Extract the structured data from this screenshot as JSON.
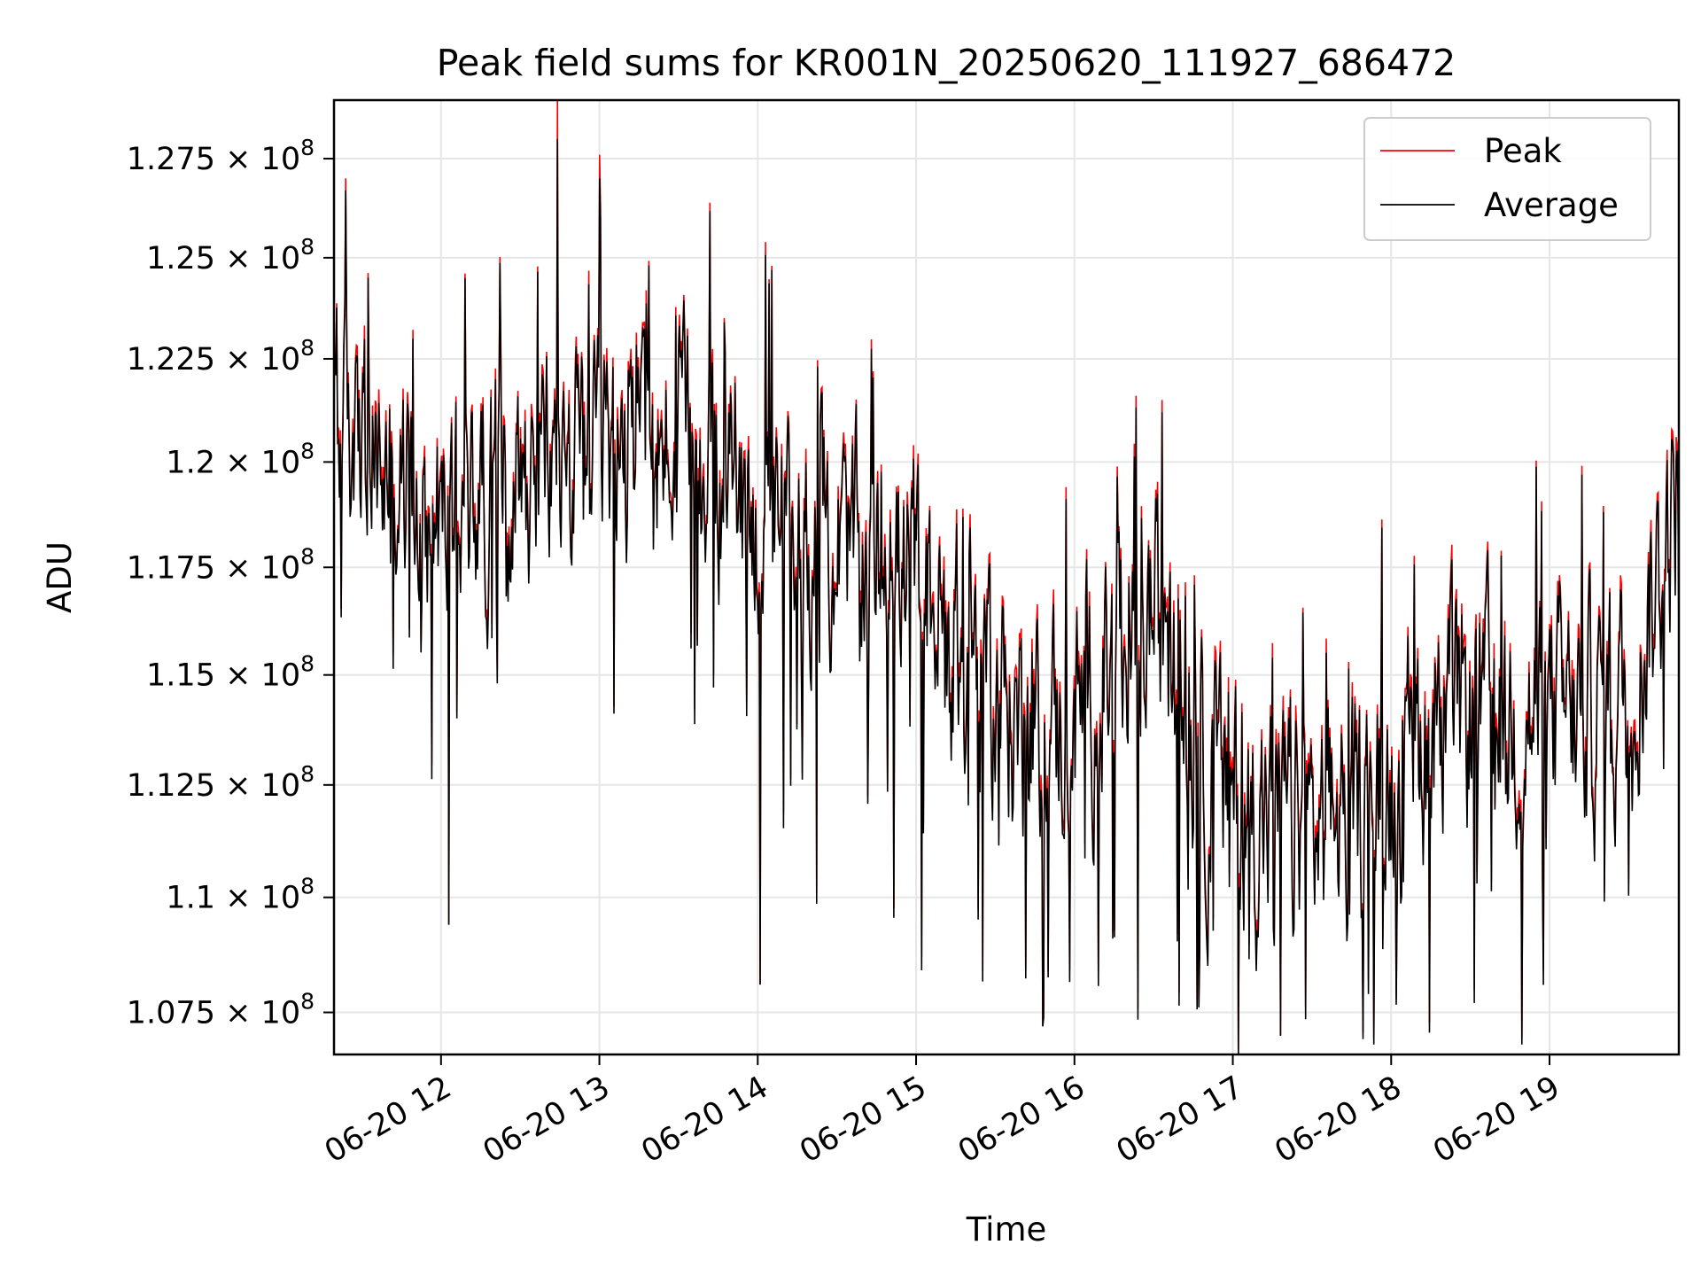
{
  "chart_data": {
    "type": "line",
    "title": "Peak field sums for KR001N_20250620_111927_686472",
    "xlabel": "Time",
    "ylabel": "ADU",
    "x_range": [
      "06-20 11:19:27",
      "06-20 19:49:00"
    ],
    "ylim": [
      106600000,
      129000000
    ],
    "x_ticks": [
      {
        "value": "06-20 12",
        "label": "06-20 12"
      },
      {
        "value": "06-20 13",
        "label": "06-20 13"
      },
      {
        "value": "06-20 14",
        "label": "06-20 14"
      },
      {
        "value": "06-20 15",
        "label": "06-20 15"
      },
      {
        "value": "06-20 16",
        "label": "06-20 16"
      },
      {
        "value": "06-20 17",
        "label": "06-20 17"
      },
      {
        "value": "06-20 18",
        "label": "06-20 18"
      },
      {
        "value": "06-20 19",
        "label": "06-20 19"
      }
    ],
    "y_ticks": [
      {
        "value": 107500000,
        "mant": "1.075",
        "exp": "8"
      },
      {
        "value": 110000000,
        "mant": "1.1",
        "exp": "8"
      },
      {
        "value": 112500000,
        "mant": "1.125",
        "exp": "8"
      },
      {
        "value": 115000000,
        "mant": "1.15",
        "exp": "8"
      },
      {
        "value": 117500000,
        "mant": "1.175",
        "exp": "8"
      },
      {
        "value": 120000000,
        "mant": "1.2",
        "exp": "8"
      },
      {
        "value": 122500000,
        "mant": "1.225",
        "exp": "8"
      },
      {
        "value": 125000000,
        "mant": "1.25",
        "exp": "8"
      },
      {
        "value": 127500000,
        "mant": "1.275",
        "exp": "8"
      }
    ],
    "y_scale": "log",
    "grid": true,
    "legend_position": "top-right",
    "series": [
      {
        "name": "Peak",
        "color": "#ff0000"
      },
      {
        "name": "Average",
        "color": "#000000"
      }
    ],
    "trend_points": [
      {
        "t": "06-20 11:20",
        "avg": 121000000
      },
      {
        "t": "06-20 11:40",
        "avg": 119500000
      },
      {
        "t": "06-20 12:00",
        "avg": 118500000
      },
      {
        "t": "06-20 12:20",
        "avg": 119500000
      },
      {
        "t": "06-20 12:40",
        "avg": 120000000
      },
      {
        "t": "06-20 13:00",
        "avg": 120000000
      },
      {
        "t": "06-20 13:20",
        "avg": 120500000
      },
      {
        "t": "06-20 13:40",
        "avg": 120000000
      },
      {
        "t": "06-20 14:00",
        "avg": 118500000
      },
      {
        "t": "06-20 14:30",
        "avg": 118000000
      },
      {
        "t": "06-20 15:00",
        "avg": 117200000
      },
      {
        "t": "06-20 15:20",
        "avg": 115000000
      },
      {
        "t": "06-20 15:45",
        "avg": 113500000
      },
      {
        "t": "06-20 16:10",
        "avg": 114500000
      },
      {
        "t": "06-20 16:30",
        "avg": 116500000
      },
      {
        "t": "06-20 16:50",
        "avg": 112500000
      },
      {
        "t": "06-20 17:10",
        "avg": 111800000
      },
      {
        "t": "06-20 17:30",
        "avg": 111500000
      },
      {
        "t": "06-20 17:50",
        "avg": 112000000
      },
      {
        "t": "06-20 18:10",
        "avg": 113500000
      },
      {
        "t": "06-20 18:30",
        "avg": 114200000
      },
      {
        "t": "06-20 18:50",
        "avg": 114000000
      },
      {
        "t": "06-20 19:10",
        "avg": 114000000
      },
      {
        "t": "06-20 19:30",
        "avg": 114500000
      },
      {
        "t": "06-20 19:48",
        "avg": 119000000
      }
    ],
    "notable_points": [
      {
        "t": "06-20 12:44",
        "peak": 129000000,
        "avg": 128000000
      },
      {
        "t": "06-20 13:00",
        "peak": 127600000,
        "avg": 127000000
      },
      {
        "t": "06-20 12:03",
        "peak": 109400000,
        "avg": 109400000
      },
      {
        "t": "06-20 14:01",
        "peak": 108100000,
        "avg": 108100000
      },
      {
        "t": "06-20 15:48",
        "peak": 107200000,
        "avg": 107200000
      },
      {
        "t": "06-20 17:02",
        "peak": 106600000,
        "avg": 106600000
      },
      {
        "t": "06-20 17:18",
        "peak": 107000000,
        "avg": 107000000
      },
      {
        "t": "06-20 19:48",
        "peak": 120600000,
        "avg": 120000000
      }
    ],
    "peak_offset_avg": 250000
  }
}
